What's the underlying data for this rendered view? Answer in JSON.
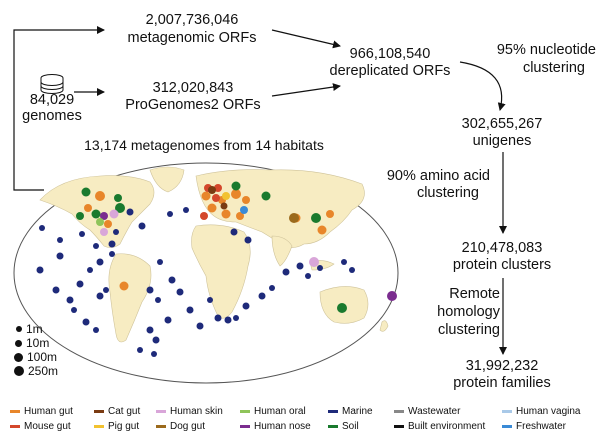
{
  "flow": {
    "metagenomic_count": "2,007,736,046",
    "metagenomic_label": "metagenomic ORFs",
    "genomes_count": "84,029",
    "genomes_label": "genomes",
    "progenomes_count": "312,020,843",
    "progenomes_label": "ProGenomes2 ORFs",
    "dereplicated_count": "966,108,540",
    "dereplicated_label": "dereplicated ORFs",
    "step1_line1": "95% nucleotide",
    "step1_line2": "clustering",
    "unigenes_count": "302,655,267",
    "unigenes_label": "unigenes",
    "step2_line1": "90% amino acid",
    "step2_line2": "clustering",
    "clusters_count": "210,478,083",
    "clusters_label": "protein clusters",
    "step3_line1": "Remote",
    "step3_line2": "homology",
    "step3_line3": "clustering",
    "families_count": "31,992,232",
    "families_label": "protein families"
  },
  "map": {
    "title": "13,174 metagenomes from 14 habitats",
    "ocean_color": "#ffffff",
    "land_color": "#f7ecc2",
    "size_legend": [
      "1m",
      "10m",
      "100m",
      "250m"
    ]
  },
  "legend": [
    {
      "label": "Human gut",
      "color": "#e8862a"
    },
    {
      "label": "Mouse gut",
      "color": "#d4472b"
    },
    {
      "label": "Cat gut",
      "color": "#7a3b12"
    },
    {
      "label": "Pig gut",
      "color": "#f2c230"
    },
    {
      "label": "Human skin",
      "color": "#d9a6d9"
    },
    {
      "label": "Dog gut",
      "color": "#9b6a1c"
    },
    {
      "label": "Human oral",
      "color": "#8fc45a"
    },
    {
      "label": "Human nose",
      "color": "#7b2d8f"
    },
    {
      "label": "Marine",
      "color": "#1e2a7a"
    },
    {
      "label": "Soil",
      "color": "#1a7a2e"
    },
    {
      "label": "Wastewater",
      "color": "#888888"
    },
    {
      "label": "Built environment",
      "color": "#111111"
    },
    {
      "label": "Human vagina",
      "color": "#a9c9e8"
    },
    {
      "label": "Freshwater",
      "color": "#3a8ad6"
    }
  ]
}
